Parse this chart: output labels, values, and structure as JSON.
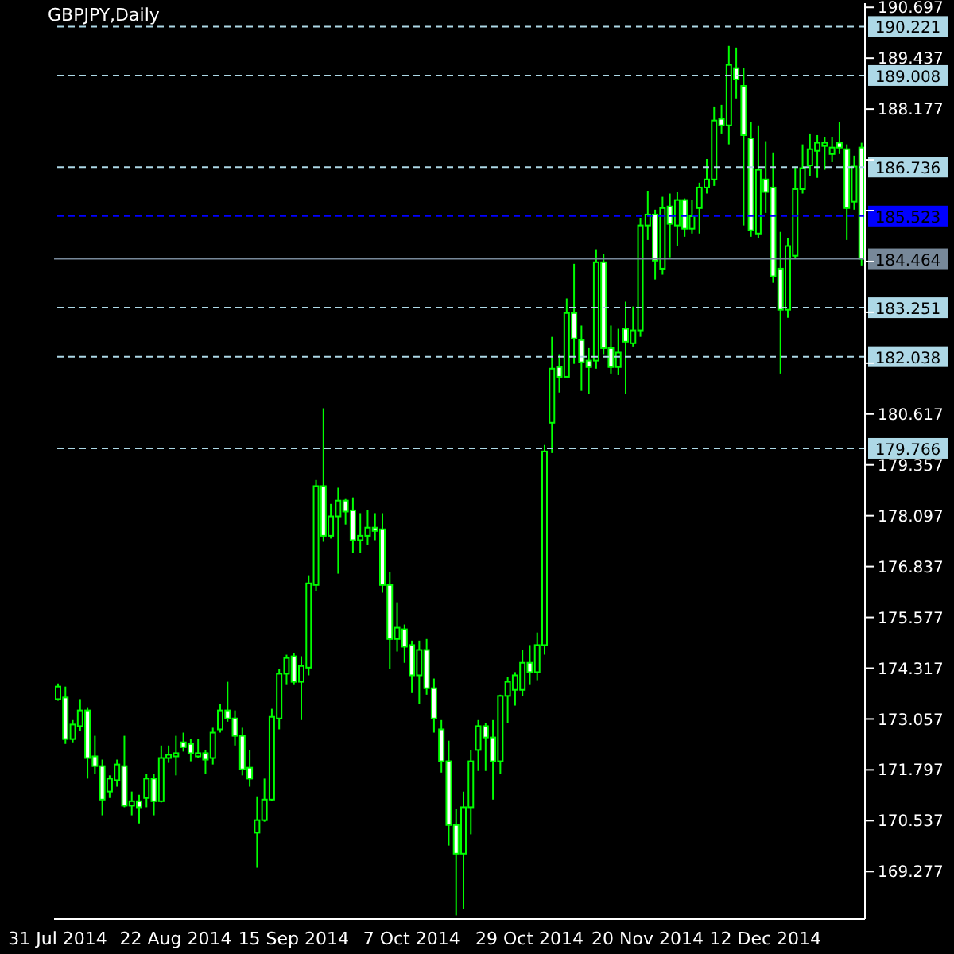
{
  "chart_data": {
    "type": "candlestick",
    "title": "GBPJPY,Daily",
    "categories": [
      "31 Jul 2014",
      null,
      null,
      null,
      null,
      null,
      null,
      null,
      null,
      null,
      null,
      null,
      null,
      null,
      null,
      null,
      "22 Aug 2014",
      null,
      null,
      null,
      null,
      null,
      null,
      null,
      null,
      null,
      null,
      null,
      null,
      null,
      null,
      null,
      "15 Sep 2014",
      null,
      null,
      null,
      null,
      null,
      null,
      null,
      null,
      null,
      null,
      null,
      null,
      null,
      null,
      null,
      "7 Oct 2014",
      null,
      null,
      null,
      null,
      null,
      null,
      null,
      null,
      null,
      null,
      null,
      null,
      null,
      null,
      null,
      "29 Oct 2014",
      null,
      null,
      null,
      null,
      null,
      null,
      null,
      null,
      null,
      null,
      null,
      null,
      null,
      null,
      null,
      "20 Nov 2014",
      null,
      null,
      null,
      null,
      null,
      null,
      null,
      null,
      null,
      null,
      null,
      null,
      null,
      null,
      null,
      "12 Dec 2014",
      null,
      null,
      null,
      null,
      null,
      null,
      null,
      null,
      null,
      null,
      null,
      null,
      null
    ],
    "series": [
      {
        "color": "#00ff00",
        "ohlc": [
          [
            173.55,
            173.94,
            173.51,
            173.86
          ],
          [
            173.59,
            173.86,
            172.44,
            172.56
          ],
          [
            172.56,
            173.03,
            172.48,
            172.92
          ],
          [
            172.88,
            173.55,
            172.76,
            173.27
          ],
          [
            173.27,
            173.35,
            171.58,
            172.09
          ],
          [
            172.13,
            172.64,
            171.69,
            171.89
          ],
          [
            171.89,
            172.05,
            170.67,
            171.06
          ],
          [
            171.26,
            171.66,
            171.1,
            171.58
          ],
          [
            171.54,
            172.05,
            171.38,
            171.93
          ],
          [
            171.89,
            172.64,
            170.87,
            170.91
          ],
          [
            170.91,
            171.26,
            170.67,
            171.02
          ],
          [
            171.02,
            171.18,
            170.47,
            170.87
          ],
          [
            171.1,
            171.69,
            170.87,
            171.58
          ],
          [
            171.58,
            171.69,
            170.67,
            171.02
          ],
          [
            171.02,
            172.4,
            170.99,
            172.09
          ],
          [
            172.09,
            172.4,
            171.97,
            172.17
          ],
          [
            172.13,
            172.64,
            171.66,
            172.21
          ],
          [
            172.48,
            172.72,
            172.25,
            172.36
          ],
          [
            172.44,
            172.56,
            172.01,
            172.21
          ],
          [
            172.13,
            172.56,
            172.09,
            172.21
          ],
          [
            172.21,
            172.29,
            171.69,
            172.05
          ],
          [
            172.09,
            172.84,
            171.93,
            172.72
          ],
          [
            172.8,
            173.43,
            172.72,
            173.27
          ],
          [
            173.27,
            173.98,
            172.99,
            173.07
          ],
          [
            173.07,
            173.27,
            172.4,
            172.64
          ],
          [
            172.64,
            172.84,
            171.66,
            171.81
          ],
          [
            171.85,
            172.29,
            171.38,
            171.58
          ],
          [
            170.24,
            171.14,
            169.37,
            170.55
          ],
          [
            170.55,
            171.58,
            170.51,
            171.06
          ],
          [
            171.06,
            173.31,
            171.02,
            173.11
          ],
          [
            173.07,
            174.29,
            172.8,
            174.18
          ],
          [
            174.18,
            174.65,
            173.9,
            174.57
          ],
          [
            174.61,
            174.69,
            173.9,
            173.98
          ],
          [
            173.98,
            174.61,
            173.03,
            174.37
          ],
          [
            174.33,
            176.62,
            174.14,
            176.42
          ],
          [
            176.38,
            178.98,
            176.23,
            178.83
          ],
          [
            178.83,
            180.76,
            177.45,
            177.6
          ],
          [
            177.6,
            178.39,
            177.53,
            178.08
          ],
          [
            178.08,
            178.79,
            176.66,
            178.47
          ],
          [
            178.47,
            178.51,
            177.88,
            178.2
          ],
          [
            178.23,
            178.55,
            177.17,
            177.49
          ],
          [
            177.49,
            178.16,
            177.17,
            177.6
          ],
          [
            177.6,
            178.23,
            177.37,
            177.8
          ],
          [
            177.8,
            178.16,
            177.49,
            177.72
          ],
          [
            177.76,
            178.16,
            176.19,
            176.38
          ],
          [
            176.38,
            176.7,
            174.29,
            175.04
          ],
          [
            175.04,
            175.95,
            174.73,
            175.32
          ],
          [
            175.28,
            175.4,
            174.45,
            174.85
          ],
          [
            174.89,
            175.0,
            173.7,
            174.14
          ],
          [
            174.14,
            175.0,
            173.43,
            174.77
          ],
          [
            174.77,
            175.04,
            173.66,
            173.82
          ],
          [
            173.82,
            174.06,
            172.72,
            173.07
          ],
          [
            172.8,
            173.03,
            171.73,
            172.01
          ],
          [
            172.01,
            172.52,
            169.92,
            170.43
          ],
          [
            170.43,
            170.83,
            168.19,
            169.72
          ],
          [
            169.72,
            171.26,
            168.35,
            170.87
          ],
          [
            170.87,
            172.29,
            170.2,
            172.01
          ],
          [
            172.29,
            173.03,
            171.77,
            172.88
          ],
          [
            172.88,
            172.96,
            171.77,
            172.6
          ],
          [
            172.6,
            173.03,
            171.06,
            172.01
          ],
          [
            172.01,
            173.66,
            171.69,
            173.63
          ],
          [
            173.63,
            174.1,
            172.96,
            173.98
          ],
          [
            173.78,
            174.22,
            173.39,
            174.14
          ],
          [
            173.78,
            174.77,
            173.63,
            174.45
          ],
          [
            174.45,
            174.89,
            173.9,
            174.22
          ],
          [
            174.22,
            175.2,
            174.02,
            174.89
          ],
          [
            174.89,
            179.85,
            174.65,
            179.69
          ],
          [
            180.4,
            182.53,
            179.65,
            181.74
          ],
          [
            181.78,
            182.1,
            181.15,
            181.54
          ],
          [
            181.54,
            183.48,
            181.54,
            183.12
          ],
          [
            183.12,
            184.34,
            181.86,
            182.49
          ],
          [
            182.45,
            182.81,
            181.19,
            181.9
          ],
          [
            181.94,
            182.25,
            181.11,
            181.78
          ],
          [
            181.94,
            184.7,
            181.74,
            184.38
          ],
          [
            184.38,
            184.58,
            182.1,
            182.25
          ],
          [
            182.25,
            182.81,
            181.62,
            181.78
          ],
          [
            181.78,
            182.73,
            181.58,
            182.14
          ],
          [
            182.73,
            183.4,
            181.11,
            182.41
          ],
          [
            182.37,
            183.28,
            182.29,
            182.69
          ],
          [
            182.69,
            185.48,
            182.53,
            185.29
          ],
          [
            185.29,
            186.15,
            184.93,
            185.56
          ],
          [
            185.56,
            185.68,
            183.95,
            184.42
          ],
          [
            184.22,
            186.0,
            184.07,
            185.72
          ],
          [
            185.76,
            186.08,
            184.5,
            185.33
          ],
          [
            185.29,
            186.12,
            184.78,
            185.92
          ],
          [
            185.92,
            185.96,
            185.01,
            185.21
          ],
          [
            185.21,
            185.92,
            185.09,
            185.52
          ],
          [
            185.72,
            186.35,
            185.09,
            186.23
          ],
          [
            186.23,
            186.94,
            186.08,
            186.43
          ],
          [
            186.43,
            188.24,
            186.27,
            187.89
          ],
          [
            187.93,
            188.28,
            187.57,
            187.77
          ],
          [
            187.77,
            189.74,
            187.3,
            189.27
          ],
          [
            189.19,
            189.7,
            188.44,
            188.91
          ],
          [
            188.75,
            189.19,
            185.29,
            187.53
          ],
          [
            187.45,
            187.85,
            185.01,
            185.17
          ],
          [
            185.09,
            187.77,
            184.97,
            186.67
          ],
          [
            186.43,
            187.38,
            185.6,
            186.12
          ],
          [
            186.23,
            187.1,
            183.87,
            184.03
          ],
          [
            184.22,
            185.13,
            181.62,
            183.2
          ],
          [
            183.2,
            184.97,
            183.0,
            184.78
          ],
          [
            184.54,
            186.75,
            184.46,
            186.19
          ],
          [
            186.19,
            187.3,
            186.08,
            186.71
          ],
          [
            186.78,
            187.57,
            186.51,
            187.18
          ],
          [
            187.14,
            187.53,
            186.47,
            187.34
          ],
          [
            187.26,
            187.49,
            186.67,
            187.34
          ],
          [
            187.06,
            187.49,
            186.86,
            187.22
          ],
          [
            187.34,
            187.85,
            187.06,
            187.22
          ],
          [
            187.18,
            187.3,
            184.93,
            185.72
          ],
          [
            185.88,
            187.02,
            185.68,
            186.75
          ],
          [
            187.22,
            187.34,
            184.3,
            184.464
          ]
        ]
      }
    ],
    "ylim": [
      168.1,
      190.8
    ],
    "yticks": [
      190.697,
      189.437,
      188.177,
      {
        "value": 186.917,
        "label": null
      },
      {
        "value": 185.657,
        "label": null
      },
      {
        "value": 184.397,
        "label": null
      },
      {
        "value": 183.137,
        "label": null
      },
      {
        "value": 181.877,
        "label": null
      },
      180.617,
      179.357,
      178.097,
      176.837,
      175.577,
      174.317,
      173.057,
      171.797,
      170.537,
      169.277
    ],
    "ref_lines": [
      {
        "axis": "y",
        "value": 190.221,
        "label": "190.221",
        "color": "#add8e6",
        "line_style": "dashed"
      },
      {
        "axis": "y",
        "value": 189.008,
        "label": "189.008",
        "color": "#add8e6",
        "line_style": "dashed"
      },
      {
        "axis": "y",
        "value": 186.736,
        "label": "186.736",
        "color": "#add8e6",
        "line_style": "dashed"
      },
      {
        "axis": "y",
        "value": 185.523,
        "label": "185.523",
        "color": "#0000ff",
        "line_style": "dashed"
      },
      {
        "axis": "y",
        "value": 184.464,
        "label": "184.464",
        "color": "#778899",
        "line_style": "solid"
      },
      {
        "axis": "y",
        "value": 183.251,
        "label": "183.251",
        "color": "#add8e6",
        "line_style": "dashed"
      },
      {
        "axis": "y",
        "value": 182.038,
        "label": "182.038",
        "color": "#add8e6",
        "line_style": "dashed"
      },
      {
        "axis": "y",
        "value": 179.766,
        "label": "179.766",
        "color": "#add8e6",
        "line_style": "dashed"
      }
    ],
    "grid": false
  }
}
